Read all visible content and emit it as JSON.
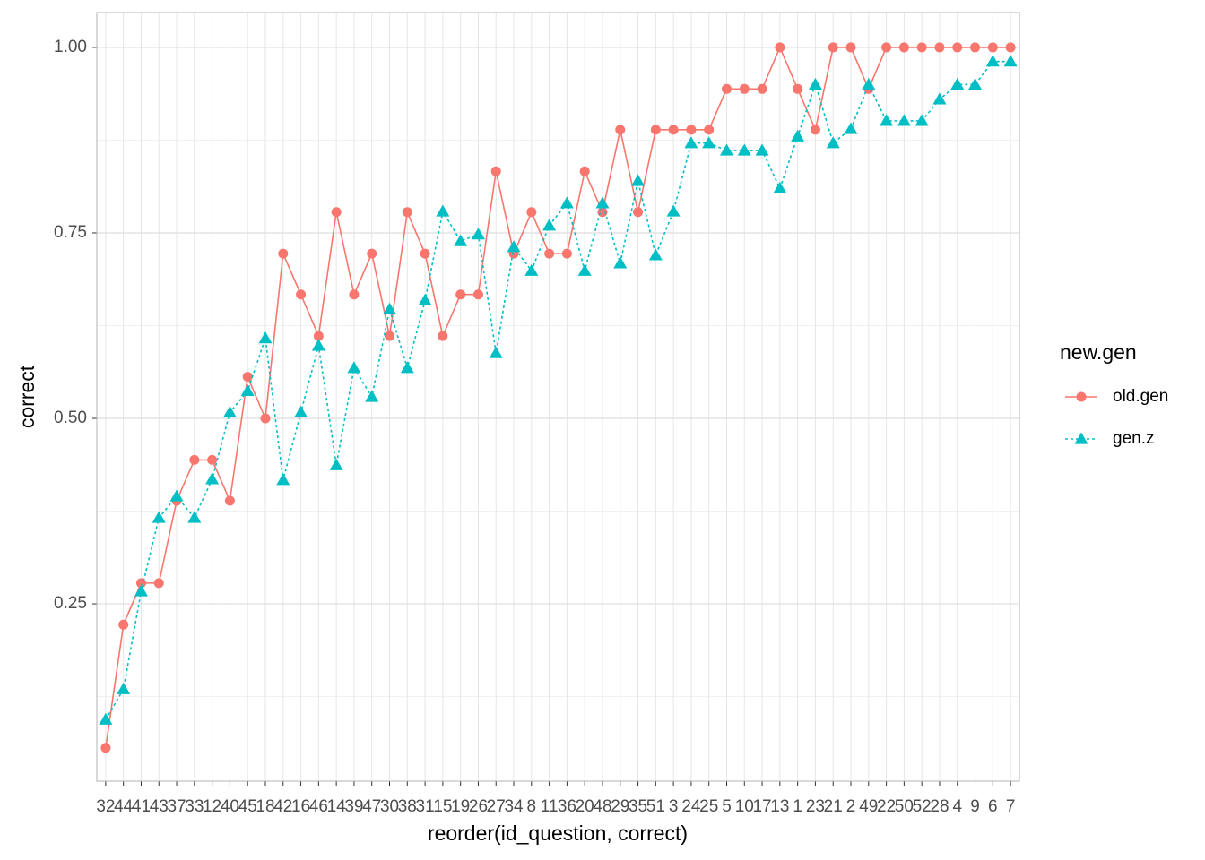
{
  "chart_data": {
    "type": "line",
    "x_label": "reorder(id_question, correct)",
    "y_label": "correct",
    "legend_title": "new.gen",
    "legend_position": "right",
    "grid": true,
    "categories": [
      "32",
      "44",
      "41",
      "43",
      "37",
      "33",
      "12",
      "40",
      "45",
      "18",
      "42",
      "16",
      "46",
      "14",
      "39",
      "47",
      "30",
      "38",
      "31",
      "15",
      "19",
      "26",
      "27",
      "34",
      "8",
      "11",
      "36",
      "20",
      "48",
      "29",
      "35",
      "51",
      "3",
      "24",
      "25",
      "5",
      "10",
      "17",
      "13",
      "1",
      "23",
      "21",
      "2",
      "49",
      "22",
      "50",
      "52",
      "28",
      "4",
      "9",
      "6",
      "7"
    ],
    "ylim": [
      0.011,
      1.047
    ],
    "yticks": [
      0.25,
      {
        "value": 0.5,
        "label": "0.50"
      },
      0.75,
      {
        "value": 1,
        "label": "1.00"
      }
    ],
    "series": [
      {
        "name": "old.gen",
        "color": "#f8766d",
        "marker": "circle",
        "dash": "solid",
        "values": [
          0.056,
          0.222,
          0.278,
          0.278,
          0.389,
          0.444,
          0.444,
          0.389,
          0.556,
          0.5,
          0.722,
          0.667,
          0.611,
          0.778,
          0.667,
          0.722,
          0.611,
          0.778,
          0.722,
          0.611,
          0.667,
          0.667,
          0.833,
          0.722,
          0.778,
          0.722,
          0.722,
          0.833,
          0.778,
          0.889,
          0.778,
          0.889,
          0.889,
          0.889,
          0.889,
          0.944,
          0.944,
          0.944,
          1,
          0.944,
          0.889,
          1,
          1,
          0.944,
          1,
          1,
          1,
          1,
          1,
          1,
          1,
          1
        ]
      },
      {
        "name": "gen.z",
        "color": "#00bfc4",
        "marker": "triangle",
        "dash": "dotted",
        "values": [
          0.094,
          0.135,
          0.267,
          0.366,
          0.395,
          0.366,
          0.418,
          0.508,
          0.537,
          0.608,
          0.417,
          0.508,
          0.598,
          0.437,
          0.568,
          0.529,
          0.647,
          0.568,
          0.659,
          0.779,
          0.739,
          0.748,
          0.588,
          0.731,
          0.699,
          0.76,
          0.79,
          0.699,
          0.79,
          0.709,
          0.82,
          0.72,
          0.779,
          0.871,
          0.871,
          0.861,
          0.861,
          0.861,
          0.81,
          0.88,
          0.95,
          0.871,
          0.89,
          0.95,
          0.901,
          0.901,
          0.901,
          0.93,
          0.95,
          0.95,
          0.981,
          0.981
        ]
      }
    ]
  }
}
